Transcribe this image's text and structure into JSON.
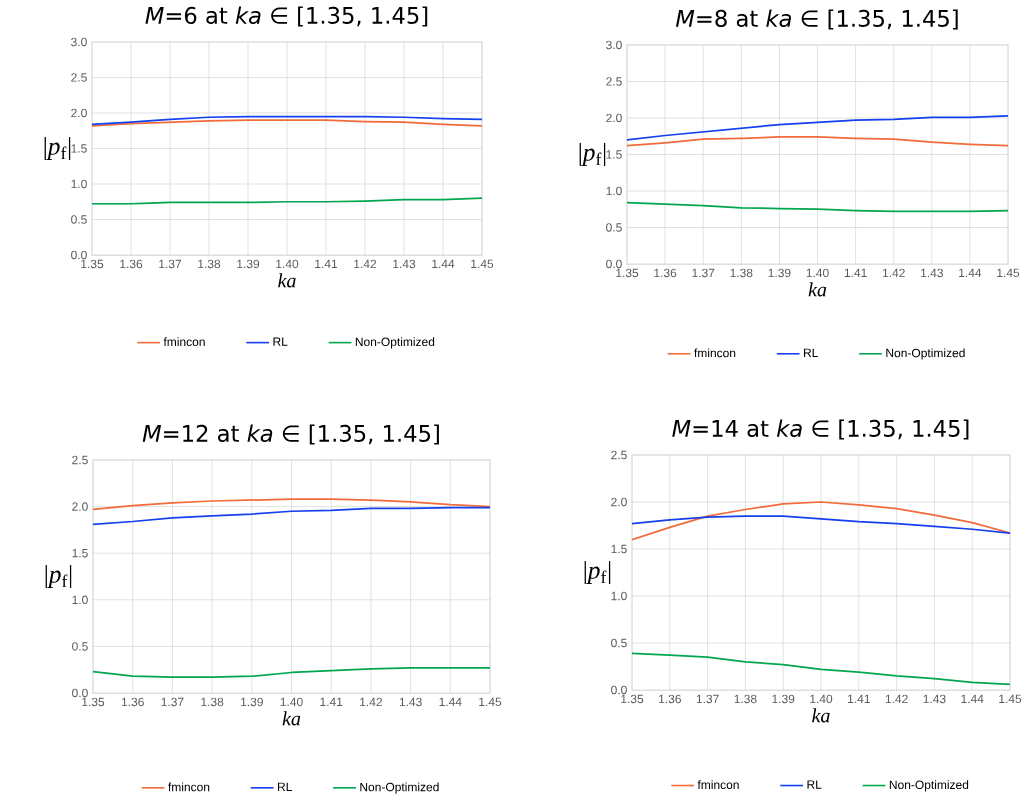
{
  "chart_data": [
    {
      "type": "line",
      "title": "*M*=6 at *ka* ∈ [1.35, 1.45]",
      "xlabel": "*ka*",
      "ylabel": "|*p*$_{f}$|",
      "categories": [
        "1.35",
        "1.36",
        "1.37",
        "1.38",
        "1.39",
        "1.40",
        "1.41",
        "1.42",
        "1.43",
        "1.44",
        "1.45"
      ],
      "ylim": [
        0,
        3
      ],
      "yticks": [
        {
          "value": 0,
          "label": "0.0"
        },
        {
          "value": 0.5,
          "label": "0.5"
        },
        {
          "value": 1,
          "label": "1.0"
        },
        {
          "value": 1.5,
          "label": "1.5"
        },
        {
          "value": 2,
          "label": "2.0"
        },
        {
          "value": 2.5,
          "label": "2.5"
        },
        {
          "value": 3,
          "label": "3.0"
        }
      ],
      "grid": true,
      "legend": "bottom",
      "series": [
        {
          "name": "fmincon",
          "color": "#f26b3a",
          "values": [
            1.82,
            1.85,
            1.87,
            1.89,
            1.9,
            1.9,
            1.9,
            1.88,
            1.87,
            1.84,
            1.82
          ]
        },
        {
          "name": "RL",
          "color": "#1440f0",
          "values": [
            1.84,
            1.87,
            1.91,
            1.94,
            1.95,
            1.95,
            1.95,
            1.95,
            1.94,
            1.92,
            1.91
          ]
        },
        {
          "name": "Non-Optimized",
          "color": "#00a650",
          "values": [
            0.72,
            0.72,
            0.74,
            0.74,
            0.74,
            0.75,
            0.75,
            0.76,
            0.78,
            0.78,
            0.8
          ]
        }
      ]
    },
    {
      "type": "line",
      "title": "*M*=8 at *ka* ∈ [1.35, 1.45]",
      "xlabel": "*ka*",
      "ylabel": "|*p*$_{f}$|",
      "categories": [
        "1.35",
        "1.36",
        "1.37",
        "1.38",
        "1.39",
        "1.40",
        "1.41",
        "1.42",
        "1.43",
        "1.44",
        "1.45"
      ],
      "ylim": [
        0,
        3
      ],
      "yticks": [
        {
          "value": 0,
          "label": "0.0"
        },
        {
          "value": 0.5,
          "label": "0.5"
        },
        {
          "value": 1,
          "label": "1.0"
        },
        {
          "value": 1.5,
          "label": "1.5"
        },
        {
          "value": 2,
          "label": "2.0"
        },
        {
          "value": 2.5,
          "label": "2.5"
        },
        {
          "value": 3,
          "label": "3.0"
        }
      ],
      "grid": true,
      "legend": "bottom",
      "series": [
        {
          "name": "fmincon",
          "color": "#f26b3a",
          "values": [
            1.62,
            1.66,
            1.71,
            1.72,
            1.74,
            1.74,
            1.72,
            1.71,
            1.67,
            1.64,
            1.62
          ]
        },
        {
          "name": "RL",
          "color": "#1440f0",
          "values": [
            1.7,
            1.76,
            1.81,
            1.86,
            1.91,
            1.94,
            1.97,
            1.98,
            2.01,
            2.01,
            2.03
          ]
        },
        {
          "name": "Non-Optimized",
          "color": "#00a650",
          "values": [
            0.84,
            0.82,
            0.8,
            0.77,
            0.76,
            0.75,
            0.73,
            0.72,
            0.72,
            0.72,
            0.73
          ]
        }
      ]
    },
    {
      "type": "line",
      "title": "*M*=12 at *ka* ∈ [1.35, 1.45]",
      "xlabel": "*ka*",
      "ylabel": "|*p*$_{f}$|",
      "categories": [
        "1.35",
        "1.36",
        "1.37",
        "1.38",
        "1.39",
        "1.40",
        "1.41",
        "1.42",
        "1.43",
        "1.44",
        "1.45"
      ],
      "ylim": [
        0,
        2.5
      ],
      "yticks": [
        {
          "value": 0,
          "label": "0.0"
        },
        {
          "value": 0.5,
          "label": "0.5"
        },
        {
          "value": 1,
          "label": "1.0"
        },
        {
          "value": 1.5,
          "label": "1.5"
        },
        {
          "value": 2,
          "label": "2.0"
        },
        {
          "value": 2.5,
          "label": "2.5"
        }
      ],
      "grid": true,
      "legend": "bottom",
      "series": [
        {
          "name": "fmincon",
          "color": "#f26b3a",
          "values": [
            1.97,
            2.01,
            2.04,
            2.06,
            2.07,
            2.08,
            2.08,
            2.07,
            2.05,
            2.02,
            2.0
          ]
        },
        {
          "name": "RL",
          "color": "#1440f0",
          "values": [
            1.81,
            1.84,
            1.88,
            1.9,
            1.92,
            1.95,
            1.96,
            1.98,
            1.98,
            1.99,
            1.99
          ]
        },
        {
          "name": "Non-Optimized",
          "color": "#00a650",
          "values": [
            0.23,
            0.18,
            0.17,
            0.17,
            0.18,
            0.22,
            0.24,
            0.26,
            0.27,
            0.27,
            0.27
          ]
        }
      ]
    },
    {
      "type": "line",
      "title": "*M*=14 at *ka* ∈ [1.35, 1.45]",
      "xlabel": "*ka*",
      "ylabel": "|*p*$_{f}$|",
      "categories": [
        "1.35",
        "1.36",
        "1.37",
        "1.38",
        "1.39",
        "1.40",
        "1.41",
        "1.42",
        "1.43",
        "1.44",
        "1.45"
      ],
      "ylim": [
        0,
        2.5
      ],
      "yticks": [
        {
          "value": 0,
          "label": "0.0"
        },
        {
          "value": 0.5,
          "label": "0.5"
        },
        {
          "value": 1,
          "label": "1.0"
        },
        {
          "value": 1.5,
          "label": "1.5"
        },
        {
          "value": 2,
          "label": "2.0"
        },
        {
          "value": 2.5,
          "label": "2.5"
        }
      ],
      "grid": true,
      "legend": "bottom",
      "series": [
        {
          "name": "fmincon",
          "color": "#f26b3a",
          "values": [
            1.6,
            1.73,
            1.85,
            1.92,
            1.98,
            2.0,
            1.97,
            1.93,
            1.86,
            1.78,
            1.67
          ]
        },
        {
          "name": "RL",
          "color": "#1440f0",
          "values": [
            1.77,
            1.81,
            1.84,
            1.85,
            1.85,
            1.82,
            1.79,
            1.77,
            1.74,
            1.71,
            1.67
          ]
        },
        {
          "name": "Non-Optimized",
          "color": "#00a650",
          "values": [
            0.39,
            0.37,
            0.35,
            0.3,
            0.27,
            0.22,
            0.19,
            0.15,
            0.12,
            0.08,
            0.06
          ]
        }
      ]
    }
  ]
}
